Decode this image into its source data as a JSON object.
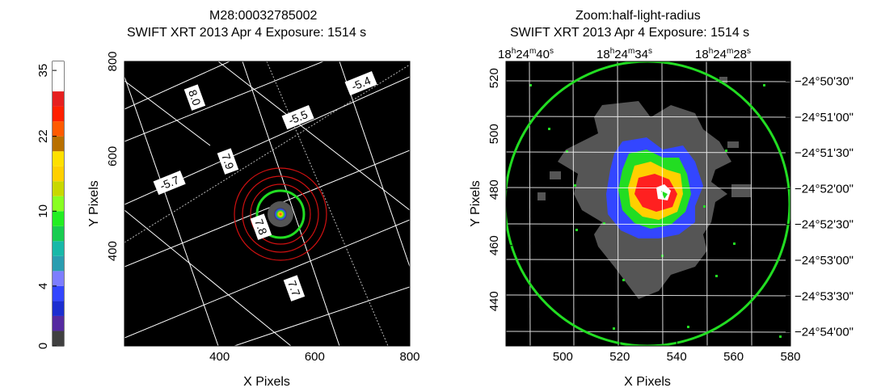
{
  "colorbar": {
    "labels": [
      "0",
      "4",
      "10",
      "22",
      "35"
    ],
    "colors": [
      "#404040",
      "#552aa0",
      "#1c2ed0",
      "#3346ff",
      "#7d7dff",
      "#2a9db0",
      "#18b8a8",
      "#18cc50",
      "#22ee22",
      "#88ff22",
      "#c8d800",
      "#ffd000",
      "#ffe000",
      "#b87000",
      "#ff5a00",
      "#ff2000",
      "#e62020",
      "#ffffff",
      "#ffffff"
    ]
  },
  "left_panel": {
    "title_line1": "M28:00032785002",
    "title_line2": "SWIFT XRT   2013 Apr  4    Exposure: 1514 s"
  },
  "right_panel": {
    "title_line1": "Zoom:half-light-radius",
    "title_line2": "SWIFT XRT   2013 Apr  4    Exposure: 1514 s"
  },
  "chart_data": [
    {
      "type": "heatmap",
      "title": "M28:00032785002",
      "subtitle": "SWIFT XRT   2013 Apr  4    Exposure: 1514 s",
      "xlabel": "X Pixels",
      "ylabel": "Y Pixels",
      "xlim": [
        200,
        800
      ],
      "ylim": [
        200,
        800
      ],
      "xticks": [
        400,
        600,
        800
      ],
      "yticks": [
        400,
        600,
        800
      ],
      "source_center": [
        530,
        525
      ],
      "green_circle_radius": 50,
      "red_circle_radii": [
        65,
        80,
        100
      ],
      "grid_labels": [
        "-5.4",
        "-5.5",
        "-5.7",
        "8.0",
        "7.9",
        "7.8",
        "7.7"
      ]
    },
    {
      "type": "heatmap",
      "title": "Zoom:half-light-radius",
      "subtitle": "SWIFT XRT   2013 Apr  4    Exposure: 1514 s",
      "xlabel": "X Pixels",
      "ylabel": "Y Pixels",
      "xlim": [
        480,
        580
      ],
      "ylim": [
        424,
        526
      ],
      "xticks": [
        500,
        520,
        540,
        560,
        580
      ],
      "yticks": [
        440,
        460,
        480,
        500,
        520
      ],
      "ra_tick_labels": [
        {
          "h": "18",
          "m": "24",
          "s": "40"
        },
        {
          "h": "18",
          "m": "24",
          "s": "34"
        },
        {
          "h": "18",
          "m": "24",
          "s": "28"
        }
      ],
      "dec_tick_labels": [
        "−24°50ʹ30ʺ",
        "−24°51ʹ00ʺ",
        "−24°51ʹ30ʺ",
        "−24°52ʹ00ʺ",
        "−24°52ʹ30ʺ",
        "−24°53ʹ00ʺ",
        "−24°53ʹ30ʺ",
        "−24°54ʹ00ʺ"
      ],
      "source_center": [
        531,
        476
      ],
      "green_circle_radius": 50
    }
  ]
}
